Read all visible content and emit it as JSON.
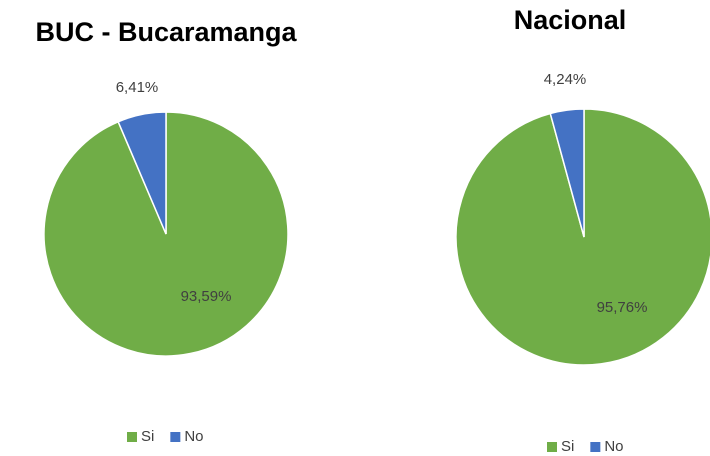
{
  "chart_data": [
    {
      "type": "pie",
      "title": "BUC - Bucaramanga",
      "categories": [
        "Si",
        "No"
      ],
      "values": [
        93.59,
        6.41
      ],
      "value_labels": [
        "93,59%",
        "6,41%"
      ],
      "colors": [
        "#70ad47",
        "#4472c4"
      ]
    },
    {
      "type": "pie",
      "title": "Nacional",
      "categories": [
        "Si",
        "No"
      ],
      "values": [
        95.76,
        4.24
      ],
      "value_labels": [
        "95,76%",
        "4,24%"
      ],
      "colors": [
        "#70ad47",
        "#4472c4"
      ]
    }
  ]
}
